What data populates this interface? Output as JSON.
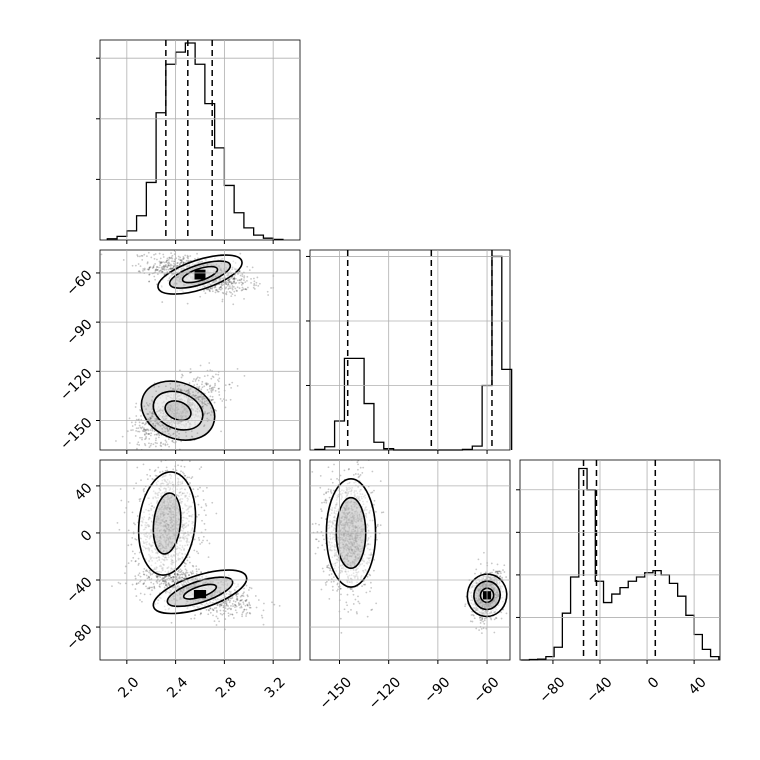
{
  "chart_data": {
    "type": "corner",
    "colors": {
      "line": "#000000",
      "grid": "#b0b0b0",
      "scatter": "#000000",
      "background": "#ffffff"
    },
    "grid": true,
    "parameters": [
      {
        "ticks": [
          2.0,
          2.4,
          2.8,
          3.2
        ],
        "tick_labels": [
          "2.0",
          "2.4",
          "2.8",
          "3.2"
        ],
        "range": [
          1.78,
          3.42
        ]
      },
      {
        "ticks": [
          -60,
          -90,
          -120,
          -150
        ],
        "tick_labels": [
          "−60",
          "−90",
          "−120",
          "−150"
        ],
        "range": [
          -168,
          -46
        ]
      },
      {
        "ticks": [
          40,
          0,
          -40,
          -80
        ],
        "tick_labels": [
          "40",
          "0",
          "−40",
          "−80"
        ],
        "range": [
          -108,
          62
        ]
      }
    ],
    "histograms": [
      {
        "param": 0,
        "bin_edges": [
          1.84,
          1.92,
          2.0,
          2.08,
          2.16,
          2.24,
          2.32,
          2.4,
          2.48,
          2.56,
          2.64,
          2.72,
          2.8,
          2.88,
          2.96,
          3.04,
          3.12,
          3.2,
          3.28
        ],
        "values": [
          2,
          6,
          15,
          40,
          95,
          210,
          290,
          310,
          325,
          290,
          225,
          152,
          90,
          45,
          20,
          8,
          3,
          1
        ],
        "quantiles": [
          2.32,
          2.5,
          2.7
        ],
        "max": 330
      },
      {
        "param": 1,
        "bin_edges": [
          -165,
          -159,
          -153,
          -147,
          -141,
          -135,
          -129,
          -123,
          -117,
          -111,
          -105,
          -99,
          -93,
          -87,
          -81,
          -75,
          -69,
          -63,
          -57,
          -51,
          -45
        ],
        "values": [
          1,
          5,
          45,
          142,
          142,
          72,
          12,
          2,
          0,
          0,
          0,
          0,
          0,
          0,
          0,
          1,
          6,
          100,
          300,
          125
        ],
        "quantiles": [
          -145,
          -94,
          -57
        ],
        "max": 310
      },
      {
        "param": 2,
        "bin_edges": [
          -107,
          -100,
          -93,
          -86,
          -79,
          -72,
          -65,
          -58,
          -51,
          -44,
          -37,
          -30,
          -23,
          -16,
          -9,
          -2,
          5,
          12,
          19,
          26,
          33,
          40,
          47,
          54,
          61
        ],
        "values": [
          0,
          1,
          2,
          8,
          30,
          110,
          195,
          450,
          400,
          185,
          135,
          155,
          170,
          185,
          195,
          205,
          210,
          200,
          180,
          150,
          105,
          60,
          25,
          8
        ],
        "quantiles": [
          -54,
          -43,
          7
        ],
        "max": 470
      }
    ],
    "scatter_2d": [
      {
        "x_param": 0,
        "y_param": 1,
        "clusters": [
          {
            "center": [
              2.6,
              -61
            ],
            "sd": [
              0.2,
              5.5
            ],
            "rho": -0.45,
            "n": 1100
          },
          {
            "center": [
              2.42,
              -144
            ],
            "sd": [
              0.17,
              10
            ],
            "rho": 0.55,
            "n": 900
          }
        ],
        "contours": [
          {
            "center": [
              2.6,
              -61
            ],
            "semi": [
              0.36,
              9
            ],
            "rot": -0.45
          },
          {
            "center": [
              2.6,
              -61
            ],
            "semi": [
              0.26,
              6
            ],
            "rot": -0.45
          },
          {
            "center": [
              2.6,
              -61
            ],
            "semi": [
              0.15,
              3.6
            ],
            "rot": -0.45
          },
          {
            "center": [
              2.42,
              -144
            ],
            "semi": [
              0.31,
              17
            ],
            "rot": 0.55
          },
          {
            "center": [
              2.42,
              -144
            ],
            "semi": [
              0.21,
              11
            ],
            "rot": 0.55
          },
          {
            "center": [
              2.42,
              -144
            ],
            "semi": [
              0.11,
              5.5
            ],
            "rot": 0.55
          }
        ],
        "peaks": [
          {
            "x": 2.6,
            "y": -61,
            "w": 0.09,
            "h": 6
          }
        ]
      },
      {
        "x_param": 0,
        "y_param": 2,
        "clusters": [
          {
            "center": [
              2.34,
              5
            ],
            "sd": [
              0.13,
              24
            ],
            "rho": 0.1,
            "n": 1200
          },
          {
            "center": [
              2.6,
              -50
            ],
            "sd": [
              0.2,
              9
            ],
            "rho": -0.5,
            "n": 1000
          }
        ],
        "contours": [
          {
            "center": [
              2.33,
              8
            ],
            "semi": [
              0.23,
              44
            ],
            "rot": 0.15
          },
          {
            "center": [
              2.33,
              8
            ],
            "semi": [
              0.11,
              26
            ],
            "rot": 0.15
          },
          {
            "center": [
              2.6,
              -50
            ],
            "semi": [
              0.4,
              14
            ],
            "rot": -0.45
          },
          {
            "center": [
              2.6,
              -50
            ],
            "semi": [
              0.28,
              9
            ],
            "rot": -0.45
          },
          {
            "center": [
              2.6,
              -50
            ],
            "semi": [
              0.14,
              4.5
            ],
            "rot": -0.45
          }
        ],
        "peaks": [
          {
            "x": 2.6,
            "y": -52,
            "w": 0.1,
            "h": 7
          }
        ]
      },
      {
        "x_param": 1,
        "y_param": 2,
        "clusters": [
          {
            "center": [
              -144,
              0
            ],
            "sd": [
              7,
              24
            ],
            "rho": 0.0,
            "n": 1200
          },
          {
            "center": [
              -60,
              -53
            ],
            "sd": [
              4.5,
              10
            ],
            "rho": 0.2,
            "n": 1000
          }
        ],
        "contours": [
          {
            "center": [
              -143,
              0
            ],
            "semi": [
              15,
              46
            ],
            "rot": 0.0
          },
          {
            "center": [
              -143,
              0
            ],
            "semi": [
              9,
              30
            ],
            "rot": 0.0
          },
          {
            "center": [
              -60,
              -53
            ],
            "semi": [
              12,
              18
            ],
            "rot": 0.2
          },
          {
            "center": [
              -60,
              -53
            ],
            "semi": [
              8,
              12
            ],
            "rot": 0.2
          },
          {
            "center": [
              -60,
              -53
            ],
            "semi": [
              4,
              6
            ],
            "rot": 0.2
          }
        ],
        "peaks": [
          {
            "x": -60,
            "y": -53,
            "w": 5,
            "h": 7
          }
        ]
      }
    ]
  }
}
